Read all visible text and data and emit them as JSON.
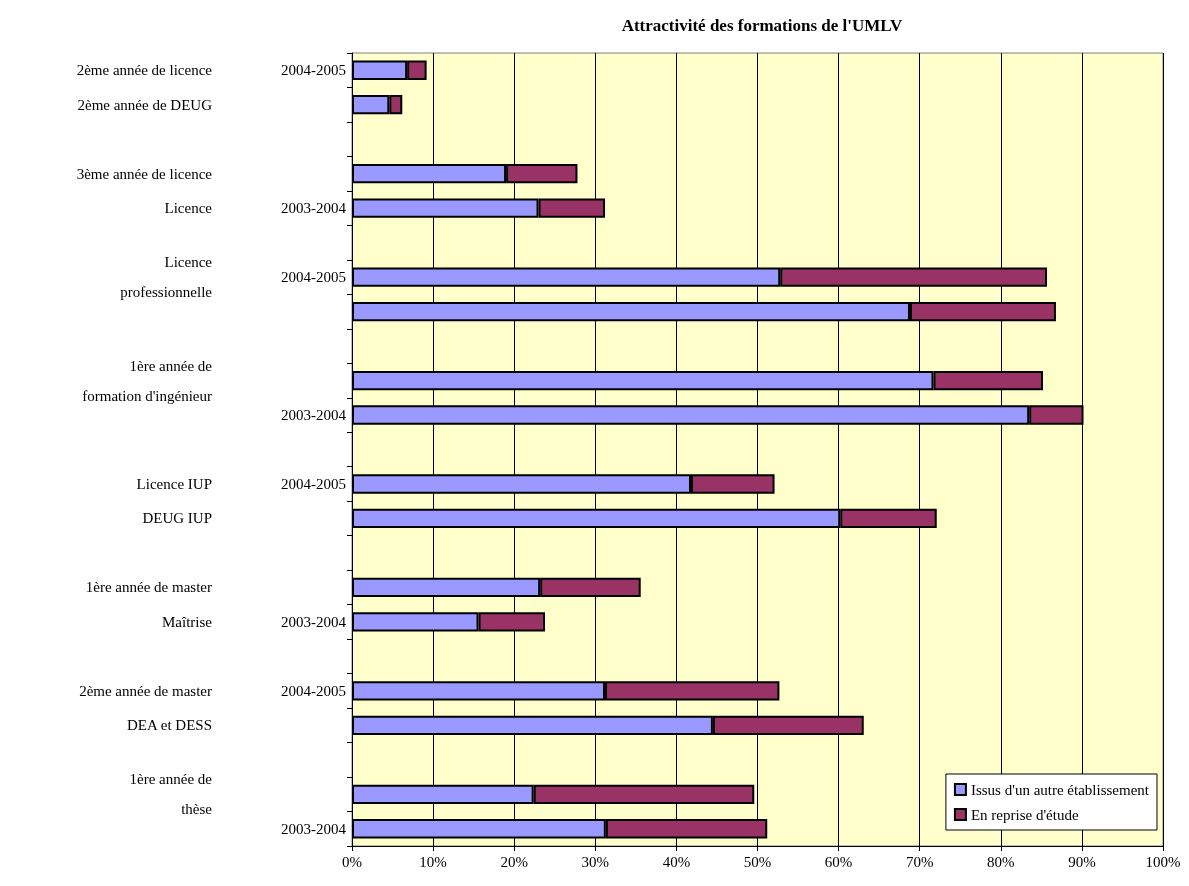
{
  "chart_data": {
    "type": "bar",
    "orientation": "horizontal",
    "stacked": true,
    "title": "Attractivité des formations de l'UMLV",
    "categories": [
      "2ème année de licence",
      "2ème année de DEUG",
      null,
      "3ème année de licence",
      "Licence",
      null,
      "Licence\nprofessionnelle",
      null,
      null,
      "1ère année de\nformation d'ingénieur",
      null,
      null,
      "Licence IUP",
      "DEUG IUP",
      null,
      "1ère année de master",
      "Maîtrise",
      null,
      "2ème année de master",
      "DEA et DESS",
      null,
      "1ère année de\nthèse",
      null
    ],
    "y2_categories": [
      "2004-2005",
      null,
      null,
      null,
      "2003-2004",
      null,
      "2004-2005",
      null,
      null,
      null,
      "2003-2004",
      null,
      "2004-2005",
      null,
      null,
      null,
      "2003-2004",
      null,
      "2004-2005",
      null,
      null,
      null,
      "2003-2004"
    ],
    "series": [
      {
        "name": "Issus d'un autre établissement",
        "color": "#9999ff",
        "values": [
          6.8,
          4.6,
          null,
          19,
          23,
          null,
          52.8,
          68.8,
          null,
          71.7,
          83.5,
          null,
          41.8,
          60.2,
          null,
          23.2,
          15.6,
          null,
          31.2,
          44.5,
          null,
          22.4,
          31.3
        ]
      },
      {
        "name": "En reprise d'étude",
        "color": "#993366",
        "values": [
          2.4,
          1.6,
          null,
          8.8,
          8.2,
          null,
          32.9,
          18,
          null,
          13.5,
          6.7,
          null,
          10.3,
          11.9,
          null,
          12.4,
          8.2,
          null,
          21.5,
          18.6,
          null,
          27.2,
          19.9
        ]
      }
    ],
    "xlim": [
      0,
      100
    ],
    "xticks": [
      {
        "value": 0,
        "label": "0%"
      },
      {
        "value": 10,
        "label": "10%"
      },
      {
        "value": 20,
        "label": "20%"
      },
      {
        "value": 30,
        "label": "30%"
      },
      {
        "value": 40,
        "label": "40%"
      },
      {
        "value": 50,
        "label": "50%"
      },
      {
        "value": 60,
        "label": "60%"
      },
      {
        "value": 70,
        "label": "70%"
      },
      {
        "value": 80,
        "label": "80%"
      },
      {
        "value": 90,
        "label": "90%"
      },
      {
        "value": 100,
        "label": "100%"
      }
    ],
    "grid": "x",
    "legend": "bottom right"
  }
}
